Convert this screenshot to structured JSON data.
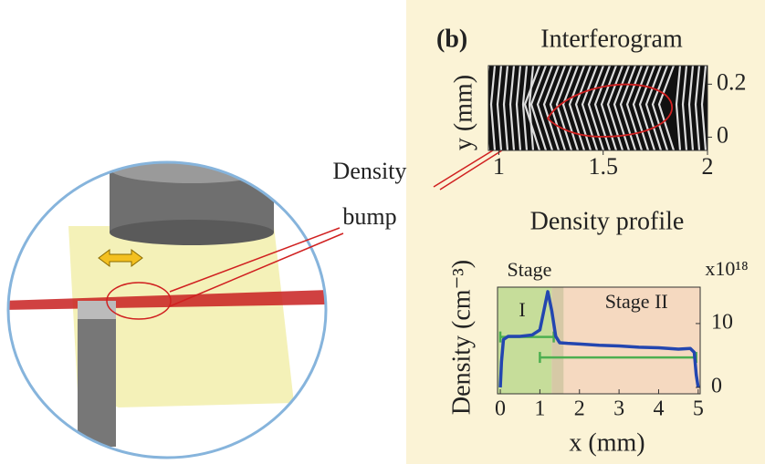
{
  "panel_label": "(b)",
  "annotation": [
    "Density",
    "bump"
  ],
  "chart_data": [
    {
      "type": "image",
      "title": "Interferogram",
      "y_label": "y (mm)",
      "xlim": [
        0.95,
        2
      ],
      "ylim": [
        -0.05,
        0.27
      ],
      "xticks": [
        1,
        1.5,
        2
      ],
      "yticks": [
        0.2,
        0
      ]
    },
    {
      "type": "line",
      "title": "Density profile",
      "y_label": "Density (cm⁻³)",
      "x_label": "x (mm)",
      "y_multiplier": "x10¹⁸",
      "xlim": [
        -0.07,
        5.05
      ],
      "ylim": [
        -1,
        15.7
      ],
      "xticks": [
        0,
        1,
        2,
        3,
        4,
        5
      ],
      "yticks": [
        10,
        0
      ],
      "regions": [
        {
          "label": [
            "Stage",
            "I"
          ],
          "x": [
            -0.07,
            1.3
          ],
          "color": "#c6dd9a"
        },
        {
          "x": [
            1.3,
            1.6
          ],
          "color": "#d6c9a6"
        },
        {
          "label": [
            "Stage II"
          ],
          "x": [
            1.6,
            5.05
          ],
          "color": "#f5d9c0"
        }
      ],
      "series": [
        {
          "color": "#2346b0",
          "x": [
            0,
            0.03,
            0.08,
            0.2,
            0.5,
            0.8,
            1.0,
            1.1,
            1.2,
            1.3,
            1.4,
            1.5,
            1.7,
            2.0,
            2.5,
            3.0,
            3.5,
            4.0,
            4.5,
            4.8,
            4.9,
            4.95,
            5.0
          ],
          "values": [
            0,
            4,
            7.5,
            8,
            8,
            8.2,
            9,
            12,
            15,
            12,
            8,
            7,
            6.9,
            6.8,
            6.6,
            6.5,
            6.3,
            6.2,
            6,
            6.1,
            5.5,
            2,
            0
          ]
        }
      ],
      "ranges": [
        {
          "y": 7.9,
          "x": [
            0,
            1.35
          ],
          "color": "#4caf50"
        },
        {
          "y": 4.7,
          "x": [
            1,
            4.95
          ],
          "color": "#4caf50"
        }
      ]
    }
  ]
}
